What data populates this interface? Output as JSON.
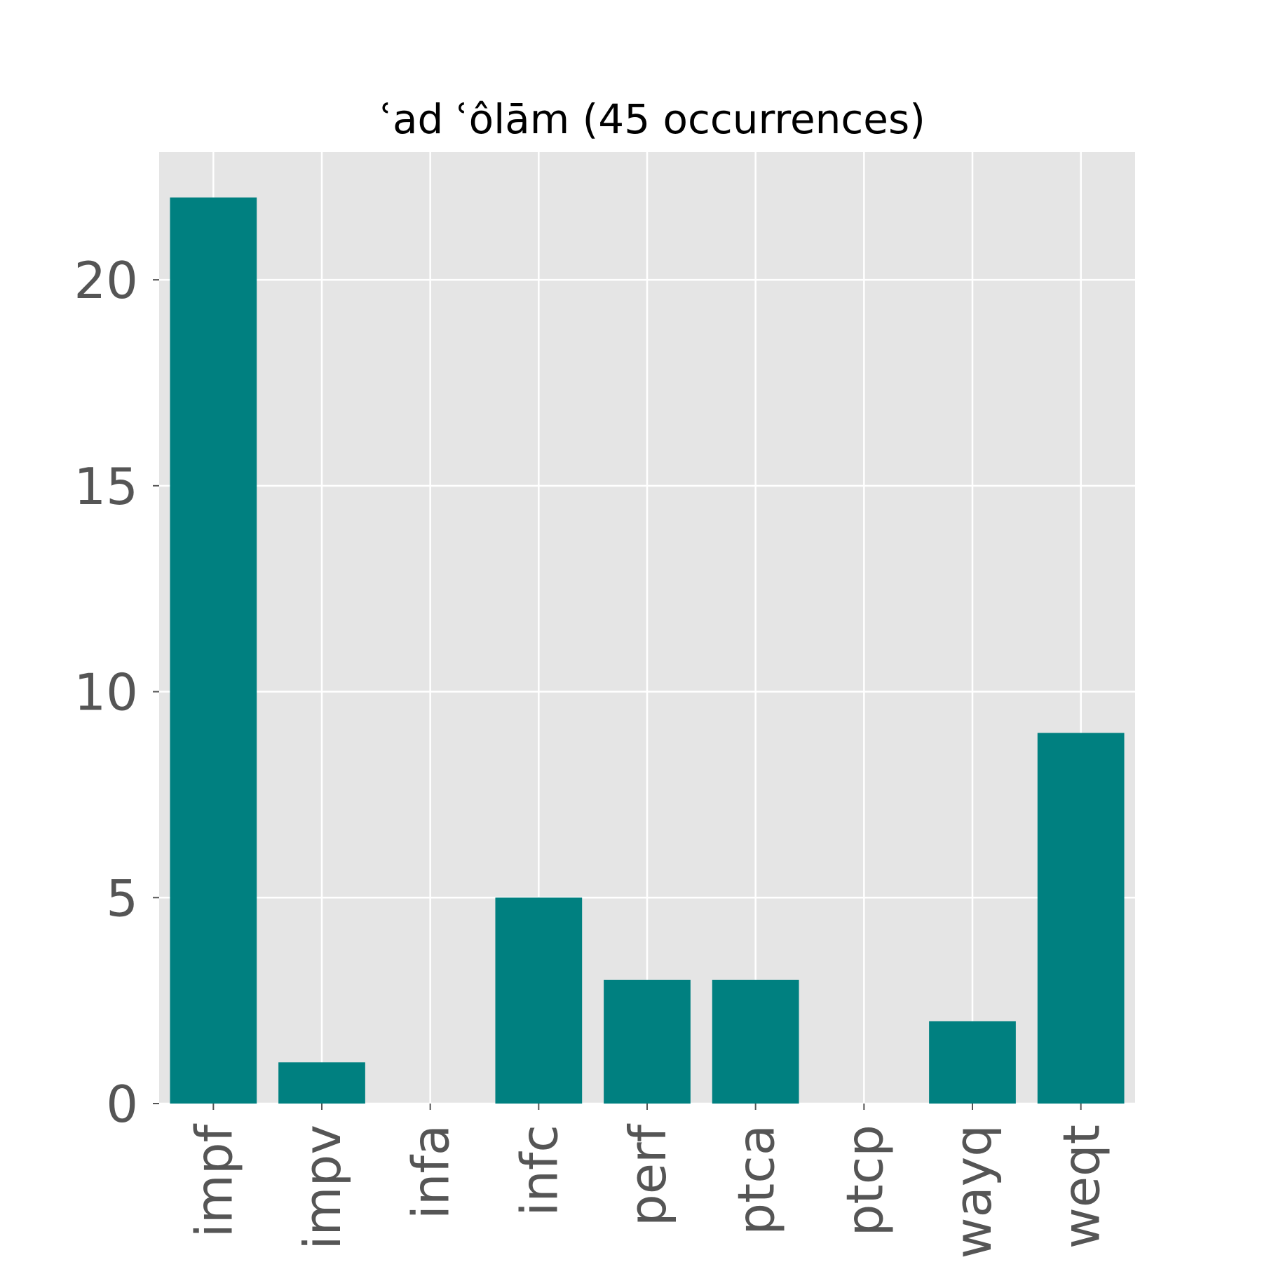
{
  "chart_data": {
    "type": "bar",
    "title": "ʿad ʿôlām (45 occurrences)",
    "categories": [
      "impf",
      "impv",
      "infa",
      "infc",
      "perf",
      "ptca",
      "ptcp",
      "wayq",
      "weqt"
    ],
    "values": [
      22,
      1,
      0,
      5,
      3,
      3,
      0,
      2,
      9
    ],
    "yticks": [
      0,
      5,
      10,
      15,
      20
    ],
    "ylim": [
      0,
      23.1
    ],
    "grid": true,
    "colors": {
      "bar": "#008080",
      "plot_background": "#e5e5e5",
      "grid": "#ffffff",
      "tick_text": "#555555"
    }
  }
}
